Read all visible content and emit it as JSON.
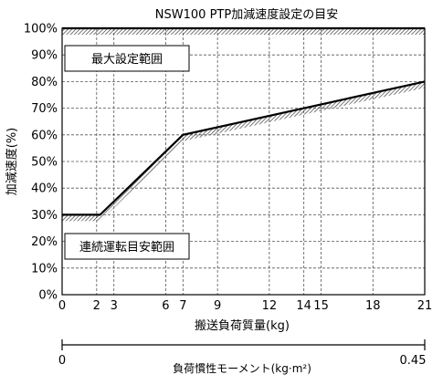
{
  "chart_data": {
    "type": "line",
    "title": "NSW100 PTP加減速度設定の目安",
    "xlabel": "搬送負荷質量(kg)",
    "ylabel": "加減速度(%)",
    "xlim": [
      0,
      21
    ],
    "ylim": [
      0,
      100
    ],
    "x_ticks": [
      0,
      2,
      3,
      6,
      7,
      9,
      12,
      14,
      15,
      18,
      21
    ],
    "x_tick_labels": [
      "0",
      "2",
      "3",
      "6",
      "7",
      "9",
      "12",
      "14",
      "15",
      "18",
      "21"
    ],
    "y_ticks": [
      0,
      10,
      20,
      30,
      40,
      50,
      60,
      70,
      80,
      90,
      100
    ],
    "y_tick_labels": [
      "0%",
      "10%",
      "20%",
      "30%",
      "40%",
      "50%",
      "60%",
      "70%",
      "80%",
      "90%",
      "100%"
    ],
    "grid": true,
    "series": [
      {
        "x": [
          0,
          2.2,
          7,
          21
        ],
        "values": [
          30,
          30,
          60,
          80
        ]
      },
      {
        "x": [
          0,
          21
        ],
        "values": [
          100,
          100
        ]
      }
    ],
    "annotations": [
      "最大設定範囲",
      "連続運転目安範囲"
    ],
    "secondary_axis": {
      "label": "負荷慣性モーメント(kg·m²)",
      "range": [
        0,
        0.45
      ],
      "tick_labels": [
        "0",
        "0.45"
      ]
    }
  },
  "colors": {
    "line": "#000000",
    "grid": "#555555",
    "hatch": "#444444"
  }
}
